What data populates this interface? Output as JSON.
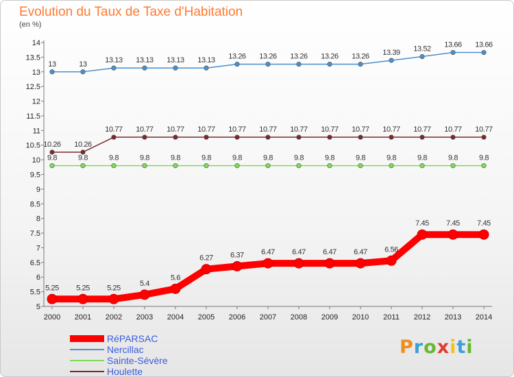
{
  "header": {
    "title": "Evolution du Taux de Taxe d'Habitation",
    "unit": "(en %)"
  },
  "logo": {
    "letters": [
      "P",
      "r",
      "o",
      "x",
      "i",
      "t",
      "i"
    ],
    "colors": [
      "#f08c1e",
      "#3aa0d8",
      "#66b82e",
      "#e23b30",
      "#f6c21a",
      "#3aa0d8",
      "#66b82e"
    ]
  },
  "chart_data": {
    "type": "line",
    "title": "Evolution du Taux de Taxe d'Habitation",
    "ylabel": "(en %)",
    "xlabel": "",
    "x": [
      "2000",
      "2001",
      "2002",
      "2003",
      "2004",
      "2005",
      "2006",
      "2007",
      "2008",
      "2009",
      "2010",
      "2011",
      "2012",
      "2013",
      "2014"
    ],
    "ylim": [
      5,
      14
    ],
    "yticks": [
      "5",
      "5.5",
      "6",
      "6.5",
      "7",
      "7.5",
      "8",
      "8.5",
      "9",
      "9.5",
      "10",
      "10.5",
      "11",
      "11.5",
      "12",
      "12.5",
      "13",
      "13.5",
      "14"
    ],
    "grid": false,
    "legend_position": "bottom-left",
    "series": [
      {
        "name": "RéPARSAC",
        "color": "#ff0000",
        "values": [
          5.25,
          5.25,
          5.25,
          5.4,
          5.6,
          6.27,
          6.37,
          6.47,
          6.47,
          6.47,
          6.47,
          6.56,
          7.45,
          7.45,
          7.45
        ],
        "labels": [
          "5.25",
          "5.25",
          "5.25",
          "5.4",
          "5.6",
          "6.27",
          "6.37",
          "6.47",
          "6.47",
          "6.47",
          "6.47",
          "6.56",
          "7.45",
          "7.45",
          "7.45"
        ]
      },
      {
        "name": "Nercillac",
        "color": "#4b8fc9",
        "values": [
          13,
          13,
          13.13,
          13.13,
          13.13,
          13.13,
          13.26,
          13.26,
          13.26,
          13.26,
          13.26,
          13.39,
          13.52,
          13.66,
          13.66
        ],
        "labels": [
          "13",
          "13",
          "13.13",
          "13.13",
          "13.13",
          "13.13",
          "13.26",
          "13.26",
          "13.26",
          "13.26",
          "13.26",
          "13.39",
          "13.52",
          "13.66",
          "13.66"
        ]
      },
      {
        "name": "Sainte-Sévère",
        "color": "#7ed957",
        "values": [
          9.8,
          9.8,
          9.8,
          9.8,
          9.8,
          9.8,
          9.8,
          9.8,
          9.8,
          9.8,
          9.8,
          9.8,
          9.8,
          9.8,
          9.8
        ],
        "labels": [
          "9.8",
          "9.8",
          "9.8",
          "9.8",
          "9.8",
          "9.8",
          "9.8",
          "9.8",
          "9.8",
          "9.8",
          "9.8",
          "9.8",
          "9.8",
          "9.8",
          "9.8"
        ]
      },
      {
        "name": "Houlette",
        "color": "#7a2a2a",
        "values": [
          10.26,
          10.26,
          10.77,
          10.77,
          10.77,
          10.77,
          10.77,
          10.77,
          10.77,
          10.77,
          10.77,
          10.77,
          10.77,
          10.77,
          10.77
        ],
        "labels": [
          "10.26",
          "10.26",
          "10.77",
          "10.77",
          "10.77",
          "10.77",
          "10.77",
          "10.77",
          "10.77",
          "10.77",
          "10.77",
          "10.77",
          "10.77",
          "10.77",
          "10.77"
        ]
      }
    ]
  }
}
